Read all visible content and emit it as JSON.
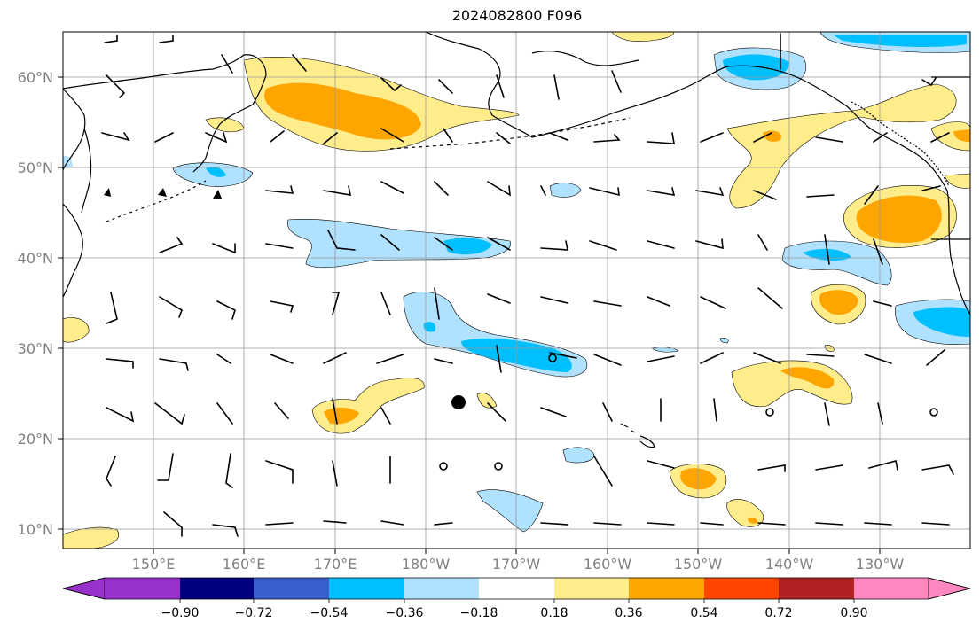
{
  "title": "2024082800 F096",
  "lat_labels": [
    "60°N",
    "50°N",
    "40°N",
    "30°N",
    "20°N",
    "10°N"
  ],
  "lon_labels": [
    "150°E",
    "160°E",
    "170°E",
    "180°W",
    "170°W",
    "160°W",
    "150°W",
    "140°W",
    "130°W"
  ],
  "colorbar": {
    "tick_labels": [
      "−0.90",
      "−0.72",
      "−0.54",
      "−0.36",
      "−0.18",
      "0.18",
      "0.36",
      "0.54",
      "0.72",
      "0.90"
    ],
    "colors": [
      "#9932CC",
      "#000080",
      "#3A5FCD",
      "#00BFFF",
      "#B0E2FF",
      "#FFFFFF",
      "#FFEC8B",
      "#FFA500",
      "#FF4500",
      "#B22222",
      "#FF87C0"
    ]
  },
  "fill_colors": {
    "light_blue": "#B0E2FF",
    "blue": "#00BFFF",
    "light_yellow": "#FFEC8B",
    "orange": "#FFA500"
  }
}
